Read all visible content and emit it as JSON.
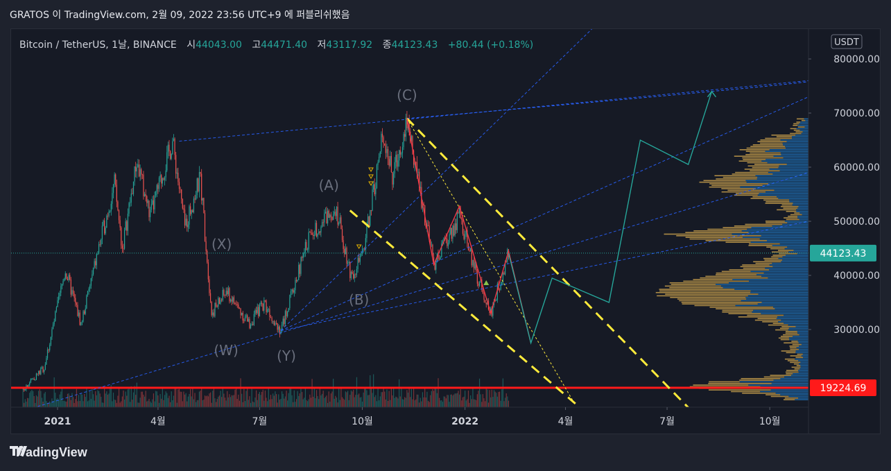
{
  "header": {
    "title": "GRATOS 이 TradingView.com, 2월 09, 2022 23:56 UTC+9 에 퍼블리쉬했음"
  },
  "legend": {
    "symbol": "Bitcoin / TetherUS, 1날, BINANCE",
    "open_label": "시",
    "open": "44043.00",
    "high_label": "고",
    "high": "44471.40",
    "low_label": "저",
    "low": "43117.92",
    "close_label": "종",
    "close": "44123.43",
    "change": "+80.44 (+0.18%)"
  },
  "footer": {
    "brand": "TradingView"
  },
  "colors": {
    "up": "#26a69a",
    "down": "#ef5350",
    "trend": "#2962ff",
    "channel": "#ffeb3b",
    "red_line": "#ff1a1a",
    "zigzag": "#f23645",
    "projection": "#26a69a",
    "vp_up": "#1e6fb3",
    "vp_down": "#c8a04c",
    "wave_label": "#6a6f7d"
  },
  "chart_data": {
    "type": "candlestick",
    "symbol": "BTCUSDT",
    "exchange": "BINANCE",
    "interval": "1D",
    "currency": "USDT",
    "ylim": [
      16000,
      84000
    ],
    "y_ticks": [
      30000,
      40000,
      50000,
      60000,
      70000,
      80000
    ],
    "y_tick_labels": [
      "30000.00",
      "40000.00",
      "50000.00",
      "60000.00",
      "70000.00",
      "80000.00"
    ],
    "x_ticks": [
      "2021",
      "4월",
      "7월",
      "10월",
      "2022",
      "4월",
      "7월",
      "10월"
    ],
    "last_price": 44123.43,
    "last_price_label": "44123.43",
    "horizontal_level": 19224.69,
    "horizontal_level_label": "19224.69",
    "grid": false,
    "price_path": [
      [
        "2020-12-01",
        19000
      ],
      [
        "2020-12-20",
        23000
      ],
      [
        "2021-01-08",
        41000
      ],
      [
        "2021-01-22",
        31000
      ],
      [
        "2021-02-08",
        46000
      ],
      [
        "2021-02-21",
        57000
      ],
      [
        "2021-02-28",
        45000
      ],
      [
        "2021-03-13",
        61000
      ],
      [
        "2021-03-25",
        51000
      ],
      [
        "2021-04-14",
        64800
      ],
      [
        "2021-04-25",
        49000
      ],
      [
        "2021-05-09",
        58000
      ],
      [
        "2021-05-19",
        33000
      ],
      [
        "2021-06-01",
        37000
      ],
      [
        "2021-06-22",
        31000
      ],
      [
        "2021-07-05",
        35000
      ],
      [
        "2021-07-20",
        29800
      ],
      [
        "2021-08-14",
        47000
      ],
      [
        "2021-09-07",
        52800
      ],
      [
        "2021-09-21",
        40000
      ],
      [
        "2021-10-01",
        43500
      ],
      [
        "2021-10-20",
        66500
      ],
      [
        "2021-10-28",
        58000
      ],
      [
        "2021-11-10",
        69000
      ],
      [
        "2021-12-04",
        42000
      ],
      [
        "2021-12-27",
        51000
      ],
      [
        "2022-01-10",
        41000
      ],
      [
        "2022-01-24",
        33000
      ],
      [
        "2022-02-09",
        44123
      ]
    ],
    "wave_labels": [
      "(W)",
      "(X)",
      "(Y)",
      "(A)",
      "(B)",
      "(C)"
    ],
    "projection_path": [
      [
        "2022-02-09",
        44123
      ],
      [
        "2022-03-01",
        27500
      ],
      [
        "2022-03-20",
        39500
      ],
      [
        "2022-05-10",
        35000
      ],
      [
        "2022-06-07",
        65000
      ],
      [
        "2022-07-20",
        60500
      ],
      [
        "2022-08-10",
        74000
      ]
    ],
    "volume_profile": "right-side histogram, blue/orange, peak near 35000-40000"
  }
}
